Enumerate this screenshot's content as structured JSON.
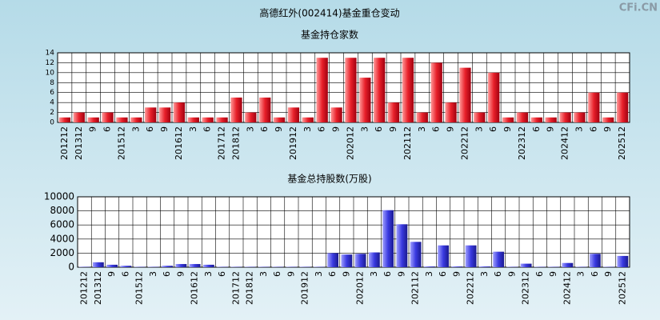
{
  "watermark": "CFi.CN",
  "chart_data": [
    {
      "type": "bar",
      "title": "高德红外(002414)基金重仓变动",
      "subtitle": "基金持仓家数",
      "color": "#e8202a",
      "grid": true,
      "categories": [
        "201212",
        "201312",
        "9",
        "6",
        "201512",
        "3",
        "6",
        "9",
        "201612",
        "3",
        "6",
        "201712",
        "201812",
        "3",
        "6",
        "9",
        "201912",
        "3",
        "6",
        "9",
        "202012",
        "3",
        "6",
        "9",
        "202112",
        "3",
        "6",
        "9",
        "202212",
        "3",
        "6",
        "9",
        "202312",
        "6",
        "9",
        "202412",
        "3",
        "6",
        "9",
        "202512"
      ],
      "values": [
        1,
        2,
        1,
        2,
        1,
        1,
        3,
        3,
        4,
        1,
        1,
        1,
        5,
        2,
        5,
        1,
        3,
        1,
        13,
        3,
        13,
        9,
        13,
        4,
        13,
        2,
        12,
        4,
        11,
        2,
        10,
        1,
        2,
        1,
        1,
        2,
        2,
        6,
        1,
        6
      ],
      "ylim": [
        0,
        14
      ],
      "yticks": [
        0,
        2,
        4,
        6,
        8,
        10,
        12,
        14
      ]
    },
    {
      "type": "bar",
      "subtitle": "基金总持股数(万股)",
      "color": "#3a3ae0",
      "grid": true,
      "categories": [
        "201212",
        "201312",
        "9",
        "6",
        "201512",
        "3",
        "6",
        "9",
        "201612",
        "3",
        "6",
        "201712",
        "201812",
        "3",
        "6",
        "9",
        "201912",
        "3",
        "6",
        "9",
        "202012",
        "3",
        "6",
        "9",
        "202112",
        "3",
        "6",
        "9",
        "202212",
        "3",
        "6",
        "9",
        "202312",
        "6",
        "9",
        "202412",
        "3",
        "6",
        "9",
        "202512"
      ],
      "values": [
        50,
        700,
        350,
        200,
        50,
        50,
        200,
        450,
        450,
        350,
        50,
        50,
        50,
        50,
        50,
        50,
        50,
        50,
        2000,
        1800,
        1900,
        2100,
        8100,
        6100,
        3600,
        100,
        3100,
        100,
        3100,
        100,
        2200,
        50,
        500,
        50,
        50,
        600,
        50,
        1900,
        50,
        1600
      ],
      "ylim": [
        0,
        10000
      ],
      "yticks": [
        0,
        2000,
        4000,
        6000,
        8000,
        10000
      ]
    }
  ]
}
